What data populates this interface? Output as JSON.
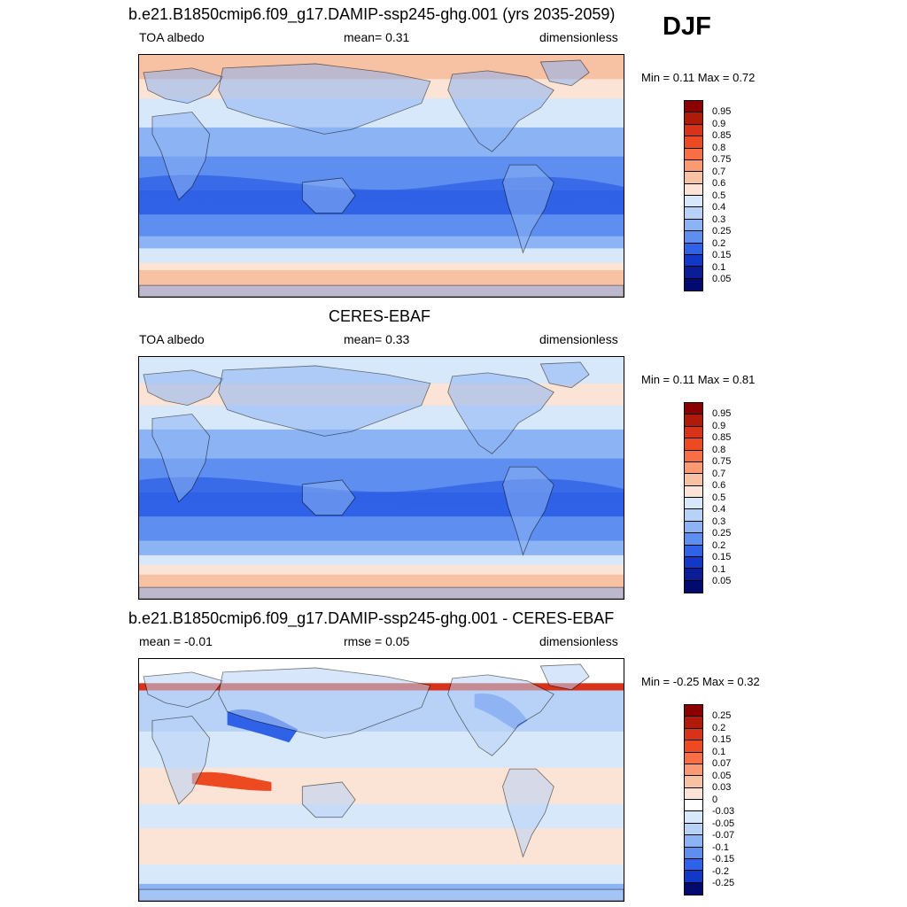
{
  "season": "DJF",
  "panels": [
    {
      "title": "b.e21.B1850cmip6.f09_g17.DAMIP-ssp245-ghg.001 (yrs 2035-2059)",
      "left_label": "TOA albedo",
      "center_label": "mean=   0.31",
      "right_label": "dimensionless",
      "minmax": "Min =   0.11 Max =   0.72",
      "colorbar_labels": [
        "0.95",
        "0.9",
        "0.85",
        "0.8",
        "0.75",
        "0.7",
        "0.6",
        "0.5",
        "0.4",
        "0.3",
        "0.25",
        "0.2",
        "0.15",
        "0.1",
        "0.05"
      ],
      "colorbar_colors": [
        "#8b0000",
        "#b01a0a",
        "#d8321a",
        "#ee4a22",
        "#f86f45",
        "#fb9a72",
        "#f7c1a3",
        "#fbe4d6",
        "#d8e8fb",
        "#b8d2f7",
        "#8cb3f3",
        "#5e8ff0",
        "#2f62e6",
        "#1338c8",
        "#0a1d96",
        "#020a70"
      ],
      "map_style": "model"
    },
    {
      "title": "CERES-EBAF",
      "left_label": "TOA albedo",
      "center_label": "mean=   0.33",
      "right_label": "dimensionless",
      "minmax": "Min =   0.11 Max =   0.81",
      "colorbar_labels": [
        "0.95",
        "0.9",
        "0.85",
        "0.8",
        "0.75",
        "0.7",
        "0.6",
        "0.5",
        "0.4",
        "0.3",
        "0.25",
        "0.2",
        "0.15",
        "0.1",
        "0.05"
      ],
      "colorbar_colors": [
        "#8b0000",
        "#b01a0a",
        "#d8321a",
        "#ee4a22",
        "#f86f45",
        "#fb9a72",
        "#f7c1a3",
        "#fbe4d6",
        "#d8e8fb",
        "#b8d2f7",
        "#8cb3f3",
        "#5e8ff0",
        "#2f62e6",
        "#1338c8",
        "#0a1d96",
        "#020a70"
      ],
      "map_style": "obs"
    },
    {
      "title": "b.e21.B1850cmip6.f09_g17.DAMIP-ssp245-ghg.001 - CERES-EBAF",
      "left_label": "mean =  -0.01",
      "center_label": "rmse =   0.05",
      "right_label": "dimensionless",
      "minmax": "Min =  -0.25 Max =   0.32",
      "colorbar_labels": [
        "0.25",
        "0.2",
        "0.15",
        "0.1",
        "0.07",
        "0.05",
        "0.03",
        "0",
        "-0.03",
        "-0.05",
        "-0.07",
        "-0.1",
        "-0.15",
        "-0.2",
        "-0.25"
      ],
      "colorbar_colors": [
        "#8b0000",
        "#b01a0a",
        "#d8321a",
        "#ee4a22",
        "#f86f45",
        "#fb9a72",
        "#f7c1a3",
        "#fbe4d6",
        "#ffffff",
        "#d8e8fb",
        "#b8d2f7",
        "#8cb3f3",
        "#5e8ff0",
        "#2f62e6",
        "#1338c8",
        "#020a70"
      ],
      "map_style": "diff"
    }
  ]
}
